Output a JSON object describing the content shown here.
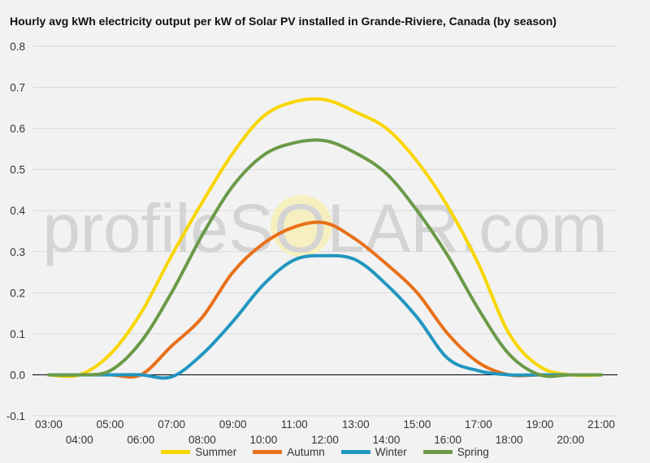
{
  "chart_data": {
    "type": "line",
    "title": "Hourly avg kWh electricity output per kW of Solar PV installed in Grande-Riviere, Canada (by season)",
    "watermark": "profileSOLAR.com",
    "x": [
      "03:00",
      "04:00",
      "05:00",
      "06:00",
      "07:00",
      "08:00",
      "09:00",
      "10:00",
      "11:00",
      "12:00",
      "13:00",
      "14:00",
      "15:00",
      "16:00",
      "17:00",
      "18:00",
      "19:00",
      "20:00",
      "21:00"
    ],
    "ylim": [
      -0.1,
      0.8
    ],
    "yticks": [
      "0.8",
      "0.7",
      "0.6",
      "0.5",
      "0.4",
      "0.3",
      "0.2",
      "0.1",
      "0.0",
      "-0.1"
    ],
    "grid": true,
    "legend_position": "bottom",
    "series": [
      {
        "name": "Summer",
        "color": "#f9d600",
        "values": [
          0.0,
          0.0,
          0.05,
          0.15,
          0.29,
          0.42,
          0.54,
          0.63,
          0.665,
          0.67,
          0.64,
          0.6,
          0.52,
          0.41,
          0.27,
          0.1,
          0.02,
          0.0,
          0.0
        ]
      },
      {
        "name": "Autumn",
        "color": "#e87019",
        "values": [
          0.0,
          0.0,
          0.0,
          0.0,
          0.07,
          0.14,
          0.25,
          0.32,
          0.36,
          0.37,
          0.33,
          0.27,
          0.2,
          0.1,
          0.03,
          0.0,
          0.0,
          0.0,
          0.0
        ]
      },
      {
        "name": "Winter",
        "color": "#2196c0",
        "values": [
          0.0,
          0.0,
          0.0,
          0.0,
          -0.005,
          0.05,
          0.13,
          0.22,
          0.28,
          0.29,
          0.28,
          0.22,
          0.14,
          0.04,
          0.01,
          0.0,
          0.0,
          0.0,
          0.0
        ]
      },
      {
        "name": "Spring",
        "color": "#6b9a48",
        "values": [
          0.0,
          0.0,
          0.01,
          0.08,
          0.2,
          0.34,
          0.46,
          0.535,
          0.565,
          0.57,
          0.54,
          0.49,
          0.4,
          0.29,
          0.16,
          0.05,
          0.0,
          0.0,
          0.0
        ]
      }
    ]
  }
}
